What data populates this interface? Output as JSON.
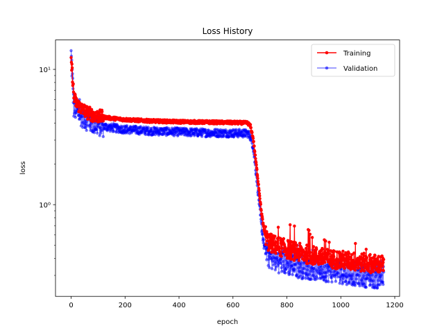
{
  "chart_data": {
    "type": "line",
    "title": "Loss History",
    "xlabel": "epoch",
    "ylabel": "loss",
    "yscale": "log",
    "xlim": [
      -58,
      1218
    ],
    "ylim": [
      0.21,
      16.5
    ],
    "xticks": [
      0,
      200,
      400,
      600,
      800,
      1000,
      1200
    ],
    "xtick_labels": [
      "0",
      "200",
      "400",
      "600",
      "800",
      "1000",
      "1200"
    ],
    "yticks": [
      1,
      10
    ],
    "ytick_labels": [
      "10⁰",
      "10¹"
    ],
    "legend": {
      "placement": "top-right",
      "entries": [
        "Training",
        "Validation"
      ]
    },
    "grid": false,
    "epochs": 1160,
    "series": [
      {
        "name": "Training",
        "color": "#ff0000",
        "marker": "circle",
        "points": [
          [
            0,
            11.5
          ],
          [
            5,
            9.0
          ],
          [
            10,
            6.2
          ],
          [
            20,
            5.6
          ],
          [
            40,
            5.1
          ],
          [
            60,
            4.8
          ],
          [
            80,
            4.6
          ],
          [
            100,
            4.5
          ],
          [
            150,
            4.35
          ],
          [
            200,
            4.25
          ],
          [
            300,
            4.15
          ],
          [
            400,
            4.1
          ],
          [
            500,
            4.07
          ],
          [
            600,
            4.04
          ],
          [
            655,
            4.02
          ],
          [
            665,
            3.8
          ],
          [
            675,
            3.1
          ],
          [
            685,
            2.1
          ],
          [
            695,
            1.4
          ],
          [
            705,
            0.9
          ],
          [
            715,
            0.65
          ],
          [
            730,
            0.53
          ],
          [
            760,
            0.5
          ],
          [
            800,
            0.47
          ],
          [
            850,
            0.44
          ],
          [
            900,
            0.42
          ],
          [
            950,
            0.4
          ],
          [
            1000,
            0.39
          ],
          [
            1050,
            0.38
          ],
          [
            1100,
            0.37
          ],
          [
            1160,
            0.36
          ]
        ]
      },
      {
        "name": "Validation",
        "color": "#0000ff",
        "marker": "circle",
        "points": [
          [
            0,
            13.0
          ],
          [
            5,
            8.5
          ],
          [
            10,
            5.2
          ],
          [
            20,
            4.9
          ],
          [
            40,
            4.5
          ],
          [
            60,
            4.2
          ],
          [
            80,
            4.0
          ],
          [
            100,
            3.85
          ],
          [
            150,
            3.7
          ],
          [
            200,
            3.6
          ],
          [
            300,
            3.5
          ],
          [
            400,
            3.45
          ],
          [
            500,
            3.4
          ],
          [
            600,
            3.38
          ],
          [
            655,
            3.36
          ],
          [
            665,
            3.2
          ],
          [
            675,
            2.7
          ],
          [
            685,
            1.8
          ],
          [
            695,
            1.15
          ],
          [
            705,
            0.72
          ],
          [
            715,
            0.5
          ],
          [
            730,
            0.42
          ],
          [
            760,
            0.39
          ],
          [
            800,
            0.37
          ],
          [
            850,
            0.35
          ],
          [
            900,
            0.34
          ],
          [
            950,
            0.33
          ],
          [
            1000,
            0.32
          ],
          [
            1050,
            0.31
          ],
          [
            1100,
            0.3
          ],
          [
            1160,
            0.29
          ]
        ]
      }
    ]
  }
}
